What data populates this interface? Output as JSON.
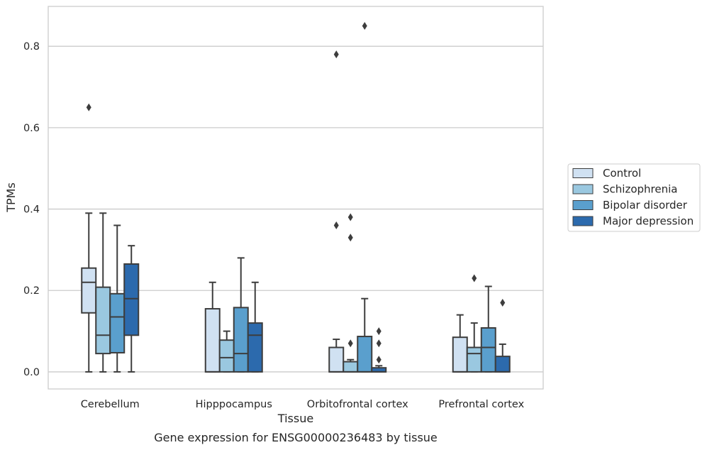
{
  "caption": "Gene expression for ENSG00000236483 by tissue",
  "chart_data": {
    "type": "box",
    "xlabel": "Tissue",
    "ylabel": "TPMs",
    "ylim": [
      -0.042,
      0.898
    ],
    "yticks": [
      0.0,
      0.2,
      0.4,
      0.6,
      0.8
    ],
    "ytick_labels": [
      "0.0",
      "0.2",
      "0.4",
      "0.6",
      "0.8"
    ],
    "grid": "horizontal",
    "legend_position": "right",
    "categories": [
      "Cerebellum",
      "Hipppocampus",
      "Orbitofrontal cortex",
      "Prefrontal cortex"
    ],
    "series": [
      {
        "name": "Control",
        "color": "#d0e1f2",
        "boxes": [
          {
            "whislo": 0.0,
            "q1": 0.145,
            "med": 0.22,
            "q3": 0.255,
            "whishi": 0.39,
            "fliers": [
              0.65
            ]
          },
          {
            "whislo": 0.0,
            "q1": 0.0,
            "med": 0.0,
            "q3": 0.155,
            "whishi": 0.22,
            "fliers": []
          },
          {
            "whislo": 0.0,
            "q1": 0.0,
            "med": 0.0,
            "q3": 0.06,
            "whishi": 0.08,
            "fliers": [
              0.36,
              0.78
            ]
          },
          {
            "whislo": 0.0,
            "q1": 0.0,
            "med": 0.0,
            "q3": 0.085,
            "whishi": 0.14,
            "fliers": []
          }
        ]
      },
      {
        "name": "Schizophrenia",
        "color": "#9ac8e0",
        "boxes": [
          {
            "whislo": 0.0,
            "q1": 0.045,
            "med": 0.09,
            "q3": 0.208,
            "whishi": 0.39,
            "fliers": []
          },
          {
            "whislo": 0.0,
            "q1": 0.0,
            "med": 0.035,
            "q3": 0.078,
            "whishi": 0.1,
            "fliers": []
          },
          {
            "whislo": 0.0,
            "q1": 0.0,
            "med": 0.0,
            "q3": 0.025,
            "whishi": 0.03,
            "fliers": [
              0.07,
              0.33,
              0.38
            ]
          },
          {
            "whislo": 0.0,
            "q1": 0.0,
            "med": 0.045,
            "q3": 0.06,
            "whishi": 0.12,
            "fliers": [
              0.23
            ]
          }
        ]
      },
      {
        "name": "Bipolar disorder",
        "color": "#5a9fcd",
        "boxes": [
          {
            "whislo": 0.0,
            "q1": 0.047,
            "med": 0.135,
            "q3": 0.192,
            "whishi": 0.36,
            "fliers": []
          },
          {
            "whislo": 0.0,
            "q1": 0.0,
            "med": 0.045,
            "q3": 0.158,
            "whishi": 0.28,
            "fliers": []
          },
          {
            "whislo": 0.0,
            "q1": 0.0,
            "med": 0.0,
            "q3": 0.087,
            "whishi": 0.18,
            "fliers": [
              0.85
            ]
          },
          {
            "whislo": 0.0,
            "q1": 0.0,
            "med": 0.06,
            "q3": 0.108,
            "whishi": 0.21,
            "fliers": []
          }
        ]
      },
      {
        "name": "Major depression",
        "color": "#2c6aad",
        "boxes": [
          {
            "whislo": 0.0,
            "q1": 0.09,
            "med": 0.18,
            "q3": 0.265,
            "whishi": 0.31,
            "fliers": []
          },
          {
            "whislo": 0.0,
            "q1": 0.0,
            "med": 0.09,
            "q3": 0.12,
            "whishi": 0.22,
            "fliers": []
          },
          {
            "whislo": 0.0,
            "q1": 0.0,
            "med": 0.0,
            "q3": 0.01,
            "whishi": 0.015,
            "fliers": [
              0.03,
              0.07,
              0.1
            ]
          },
          {
            "whislo": 0.0,
            "q1": 0.0,
            "med": 0.0,
            "q3": 0.038,
            "whishi": 0.068,
            "fliers": [
              0.17
            ]
          }
        ]
      }
    ]
  }
}
